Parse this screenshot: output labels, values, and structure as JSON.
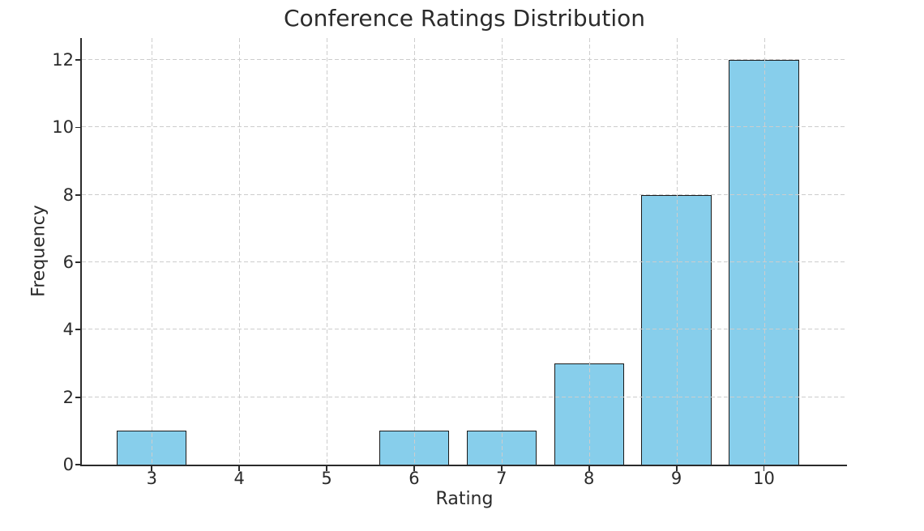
{
  "chart_data": {
    "type": "bar",
    "title": "Conference Ratings Distribution",
    "xlabel": "Rating",
    "ylabel": "Frequency",
    "categories": [
      3,
      4,
      5,
      6,
      7,
      8,
      9,
      10
    ],
    "values": [
      1,
      0,
      0,
      1,
      1,
      3,
      8,
      12
    ],
    "x_ticks": [
      3,
      4,
      5,
      6,
      7,
      8,
      9,
      10
    ],
    "y_ticks": [
      0,
      2,
      4,
      6,
      8,
      10,
      12
    ],
    "xlim": [
      2.2,
      10.95
    ],
    "ylim": [
      0,
      12.65
    ],
    "bar_width": 0.8,
    "grid": true,
    "grid_style": "dashed",
    "grid_above_bars": true,
    "legend": "none",
    "colors": {
      "bar_fill": "#87CEEB",
      "bar_edge": "#1a1a1a",
      "grid_line": "#cdcdcd",
      "axis_line": "#2b2b2b",
      "text": "#2b2b2b",
      "background": "#ffffff"
    }
  }
}
